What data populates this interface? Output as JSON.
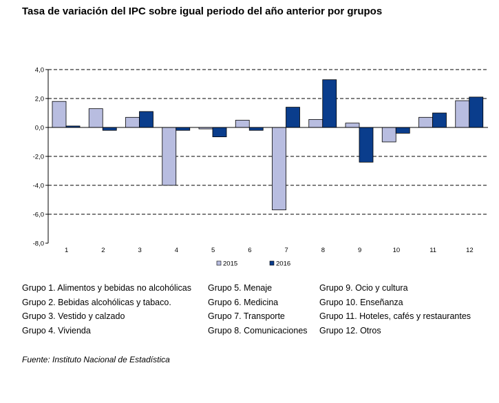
{
  "title": "Tasa de variación del IPC sobre igual periodo del año anterior por grupos",
  "source": "Fuente: Instituto Nacional de Estadística",
  "colors": {
    "s2015": "#b8bde0",
    "s2016": "#0a3d8c",
    "grid": "#000000"
  },
  "chart_data": {
    "type": "bar",
    "categories": [
      "1",
      "2",
      "3",
      "4",
      "5",
      "6",
      "7",
      "8",
      "9",
      "10",
      "11",
      "12"
    ],
    "series": [
      {
        "name": "2015",
        "values": [
          1.8,
          1.3,
          0.7,
          -4.0,
          -0.1,
          0.5,
          -5.7,
          0.55,
          0.3,
          -1.0,
          0.7,
          1.85
        ]
      },
      {
        "name": "2016",
        "values": [
          0.1,
          -0.2,
          1.1,
          -0.2,
          -0.65,
          -0.2,
          1.4,
          3.3,
          -2.4,
          -0.4,
          1.0,
          2.1
        ]
      }
    ],
    "ylim": [
      -8,
      4
    ],
    "yticks": [
      "4,0",
      "2,0",
      "0,0",
      "-2,0",
      "-4,0",
      "-6,0",
      "-8,0"
    ],
    "ytick_values": [
      4,
      2,
      0,
      -2,
      -4,
      -6,
      -8
    ],
    "gridlines": [
      4,
      2,
      -2,
      -4,
      -6
    ],
    "legend_position": "bottom"
  },
  "groups": {
    "col1": [
      "Grupo 1. Alimentos y bebidas no alcohólicas",
      "Grupo 2. Bebidas alcohólicas y  tabaco.",
      "Grupo 3. Vestido y calzado",
      "Grupo 4. Vivienda"
    ],
    "col2": [
      "Grupo 5. Menaje",
      "Grupo 6. Medicina",
      "Grupo 7. Transporte",
      "Grupo 8. Comunicaciones"
    ],
    "col3": [
      "Grupo 9. Ocio y cultura",
      "Grupo 10. Enseñanza",
      "Grupo 11. Hoteles, cafés y restaurantes",
      "Grupo 12. Otros"
    ]
  }
}
